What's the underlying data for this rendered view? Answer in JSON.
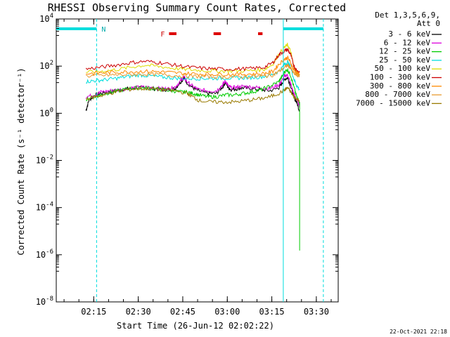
{
  "chart_data": {
    "type": "line",
    "title": "RHESSI Observing Summary Count Rates, Corrected",
    "xlabel": "Start Time (26-Jun-12 02:02:22)",
    "ylabel": "Corrected Count Rate (s⁻¹ detector⁻¹)",
    "yscale": "log",
    "ylim": [
      1e-08,
      10000.0
    ],
    "xlim_minutes": [
      0,
      95
    ],
    "y_ticks": [
      {
        "exp": 4,
        "label": "10",
        "sup": "4"
      },
      {
        "exp": 2,
        "label": "10",
        "sup": "2"
      },
      {
        "exp": 0,
        "label": "10",
        "sup": "0"
      },
      {
        "exp": -2,
        "label": "10",
        "sup": "-2"
      },
      {
        "exp": -4,
        "label": "10",
        "sup": "-4"
      },
      {
        "exp": -6,
        "label": "10",
        "sup": "-6"
      },
      {
        "exp": -8,
        "label": "10",
        "sup": "-8"
      }
    ],
    "x_ticks": [
      {
        "min": 12.63,
        "label": "02:15"
      },
      {
        "min": 27.63,
        "label": "02:30"
      },
      {
        "min": 42.63,
        "label": "02:45"
      },
      {
        "min": 57.63,
        "label": "03:00"
      },
      {
        "min": 72.63,
        "label": "03:15"
      },
      {
        "min": 87.63,
        "label": "03:30"
      }
    ],
    "legend": {
      "header": [
        "Det 1,3,5,6,9,",
        "Att 0"
      ],
      "placement": "right"
    },
    "series": [
      {
        "name": "3 - 6 keV",
        "color": "#000000",
        "x": [
          10,
          11,
          13,
          15,
          18,
          21,
          24,
          27,
          30,
          33,
          36,
          38,
          40,
          42,
          43,
          44,
          46,
          48,
          51,
          54,
          56,
          57,
          58,
          59,
          61,
          63,
          66,
          69,
          72,
          75,
          76,
          77,
          78,
          79,
          80,
          81,
          82
        ],
        "y": [
          1.3,
          3.5,
          6,
          7,
          8,
          9.5,
          11,
          12,
          12,
          11,
          10,
          10,
          11,
          22,
          32,
          20,
          12,
          9,
          7,
          7,
          13,
          20,
          12,
          10,
          11,
          12,
          11,
          10,
          9,
          12,
          18,
          28,
          32,
          14,
          5,
          3,
          1.2
        ]
      },
      {
        "name": "6 - 12 keV",
        "color": "#dd00dd",
        "x": [
          10,
          13,
          15,
          18,
          21,
          24,
          27,
          30,
          33,
          36,
          38,
          40,
          42,
          43,
          44,
          46,
          48,
          51,
          54,
          56,
          57,
          58,
          59,
          61,
          63,
          66,
          69,
          72,
          75,
          76,
          77,
          78,
          79,
          80,
          81,
          82
        ],
        "y": [
          5,
          6,
          8,
          9,
          10,
          11.5,
          12.5,
          13,
          12,
          11,
          11,
          13,
          24,
          35,
          22,
          14,
          10,
          9,
          9,
          16,
          24,
          14,
          12,
          13,
          14,
          13,
          12,
          11,
          16,
          24,
          38,
          42,
          18,
          7,
          4,
          2
        ]
      },
      {
        "name": "12 - 25 keV",
        "color": "#00cc00",
        "x": [
          10,
          13,
          15,
          18,
          21,
          24,
          27,
          30,
          33,
          36,
          39,
          42,
          44,
          46,
          48,
          51,
          54,
          57,
          60,
          63,
          66,
          69,
          72,
          75,
          76,
          77,
          78,
          79,
          80,
          81,
          82
        ],
        "y": [
          4,
          5,
          6,
          7.5,
          9,
          11,
          12,
          12,
          11,
          10,
          9,
          8,
          8,
          7,
          6,
          5,
          5,
          6,
          6,
          7,
          8,
          10,
          14,
          22,
          35,
          60,
          70,
          40,
          14,
          5,
          3
        ]
      },
      {
        "name": "25 - 50 keV",
        "color": "#00dddd",
        "x": [
          10,
          13,
          16,
          20,
          24,
          28,
          32,
          36,
          40,
          44,
          48,
          52,
          56,
          60,
          64,
          68,
          72,
          75,
          77,
          78,
          79,
          80,
          81,
          82
        ],
        "y": [
          22,
          24,
          26,
          30,
          36,
          42,
          38,
          34,
          31,
          30,
          30,
          30,
          31,
          31,
          32,
          34,
          40,
          60,
          120,
          150,
          90,
          30,
          15,
          10
        ]
      },
      {
        "name": "50 - 100 keV",
        "color": "#dddd00",
        "x": [
          10,
          15,
          20,
          25,
          30,
          35,
          40,
          45,
          50,
          55,
          60,
          65,
          70,
          73,
          75,
          77,
          78,
          79,
          80,
          81,
          82
        ],
        "y": [
          55,
          60,
          70,
          90,
          110,
          95,
          80,
          70,
          65,
          62,
          62,
          64,
          72,
          120,
          320,
          650,
          800,
          400,
          100,
          50,
          45
        ]
      },
      {
        "name": "100 - 300 keV",
        "color": "#cc0000",
        "x": [
          10,
          15,
          20,
          25,
          30,
          35,
          40,
          45,
          50,
          55,
          60,
          65,
          70,
          73,
          75,
          77,
          78,
          79,
          80,
          81,
          82
        ],
        "y": [
          75,
          90,
          110,
          140,
          160,
          140,
          110,
          90,
          80,
          75,
          75,
          78,
          88,
          140,
          300,
          450,
          500,
          300,
          110,
          65,
          55
        ]
      },
      {
        "name": "300 - 800 keV",
        "color": "#ff8800",
        "x": [
          10,
          15,
          20,
          25,
          30,
          35,
          40,
          45,
          50,
          55,
          60,
          65,
          70,
          73,
          75,
          77,
          78,
          79,
          80,
          81,
          82
        ],
        "y": [
          48,
          52,
          55,
          58,
          60,
          58,
          52,
          48,
          46,
          45,
          45,
          46,
          48,
          60,
          120,
          200,
          230,
          140,
          70,
          50,
          46
        ]
      },
      {
        "name": "800 - 7000 keV",
        "color": "#e89a30",
        "x": [
          10,
          15,
          20,
          25,
          30,
          35,
          40,
          45,
          50,
          55,
          60,
          65,
          70,
          73,
          75,
          77,
          78,
          79,
          80,
          81,
          82
        ],
        "y": [
          38,
          40,
          42,
          44,
          45,
          44,
          40,
          37,
          36,
          35,
          35,
          36,
          37,
          42,
          60,
          90,
          110,
          80,
          50,
          40,
          38
        ]
      },
      {
        "name": "7000 - 15000 keV",
        "color": "#997a00",
        "x": [
          10,
          13,
          16,
          20,
          24,
          28,
          32,
          36,
          40,
          44,
          46,
          48,
          52,
          56,
          60,
          64,
          68,
          72,
          75,
          77,
          78,
          79,
          80,
          81,
          82
        ],
        "y": [
          4,
          5,
          6,
          8,
          10,
          11,
          11,
          10,
          9,
          7,
          5,
          3.5,
          3,
          3,
          3,
          3.5,
          4,
          5,
          7,
          10,
          12,
          8,
          5,
          4,
          3.5
        ]
      }
    ],
    "attenuator_segments": [
      {
        "from": 0,
        "to": 13.6,
        "label": "N"
      },
      {
        "from": 76.5,
        "to": 90
      }
    ],
    "flare_flags": [
      {
        "from": 38,
        "to": 40.5
      },
      {
        "from": 53,
        "to": 55.5
      },
      {
        "from": 68,
        "to": 69.5
      }
    ],
    "flare_label": "F",
    "vertical_markers": [
      {
        "min": 13.6,
        "style": "dashed"
      },
      {
        "min": 76.5,
        "style": "solid"
      },
      {
        "min": 90,
        "style": "dashed"
      }
    ],
    "footer_timestamp": "22-Oct-2021 22:18"
  }
}
